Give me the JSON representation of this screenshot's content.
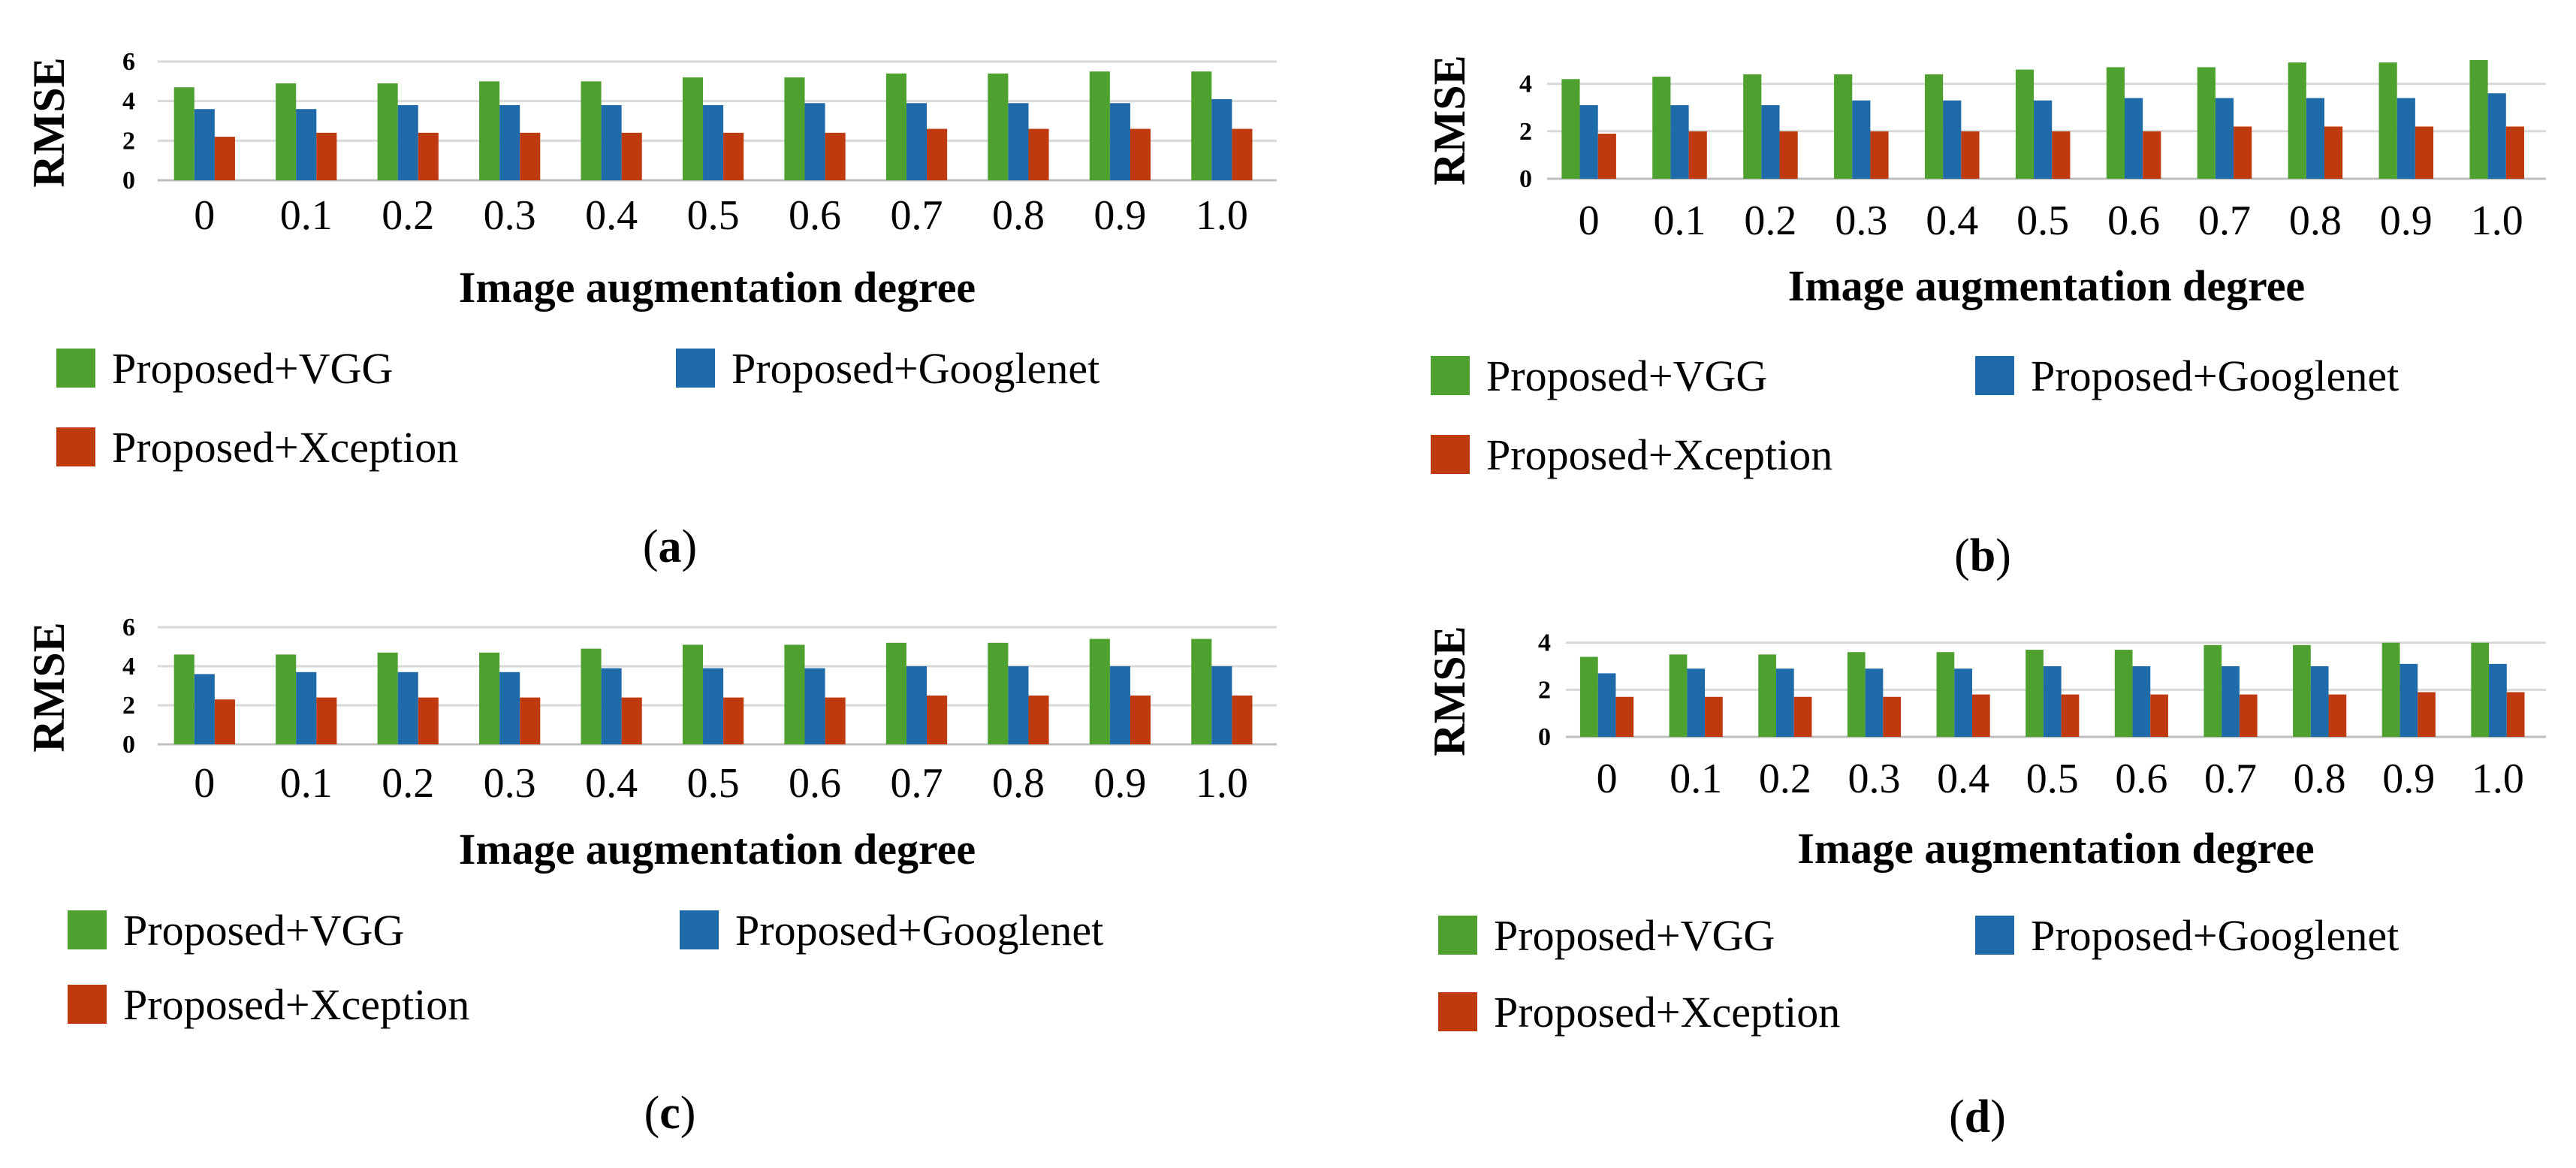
{
  "colors": {
    "vgg": "#4ea12f",
    "googlenet": "#1f6aa8",
    "xception": "#c03a10",
    "grid": "#d9d9d9",
    "axis": "#bfbfbf"
  },
  "chart_data": [
    {
      "type": "bar",
      "panel_label": "a",
      "ylabel": "RMSE",
      "xlabel": "Image augmentation degree",
      "categories": [
        "0",
        "0.1",
        "0.2",
        "0.3",
        "0.4",
        "0.5",
        "0.6",
        "0.7",
        "0.8",
        "0.9",
        "1.0"
      ],
      "ylim": [
        0,
        6
      ],
      "yticks": [
        "0",
        "2",
        "4",
        "6"
      ],
      "grid": true,
      "legend_position": "bottom",
      "series": [
        {
          "name": "Proposed+VGG",
          "color_key": "vgg",
          "values": [
            4.7,
            4.9,
            4.9,
            5.0,
            5.0,
            5.2,
            5.2,
            5.4,
            5.4,
            5.5,
            5.5
          ]
        },
        {
          "name": "Proposed+Googlenet",
          "color_key": "googlenet",
          "values": [
            3.6,
            3.6,
            3.8,
            3.8,
            3.8,
            3.8,
            3.9,
            3.9,
            3.9,
            3.9,
            4.1
          ]
        },
        {
          "name": "Proposed+Xception",
          "color_key": "xception",
          "values": [
            2.2,
            2.4,
            2.4,
            2.4,
            2.4,
            2.4,
            2.4,
            2.6,
            2.6,
            2.6,
            2.6
          ]
        }
      ]
    },
    {
      "type": "bar",
      "panel_label": "b",
      "ylabel": "RMSE",
      "xlabel": "Image augmentation degree",
      "categories": [
        "0",
        "0.1",
        "0.2",
        "0.3",
        "0.4",
        "0.5",
        "0.6",
        "0.7",
        "0.8",
        "0.9",
        "1.0"
      ],
      "ylim": [
        0,
        5
      ],
      "yticks": [
        "0",
        "2",
        "4"
      ],
      "grid": true,
      "legend_position": "bottom",
      "series": [
        {
          "name": "Proposed+VGG",
          "color_key": "vgg",
          "values": [
            4.2,
            4.3,
            4.4,
            4.4,
            4.4,
            4.6,
            4.7,
            4.7,
            4.9,
            4.9,
            5.0
          ]
        },
        {
          "name": "Proposed+Googlenet",
          "color_key": "googlenet",
          "values": [
            3.1,
            3.1,
            3.1,
            3.3,
            3.3,
            3.3,
            3.4,
            3.4,
            3.4,
            3.4,
            3.6
          ]
        },
        {
          "name": "Proposed+Xception",
          "color_key": "xception",
          "values": [
            1.9,
            2.0,
            2.0,
            2.0,
            2.0,
            2.0,
            2.0,
            2.2,
            2.2,
            2.2,
            2.2
          ]
        }
      ]
    },
    {
      "type": "bar",
      "panel_label": "c",
      "ylabel": "RMSE",
      "xlabel": "Image augmentation degree",
      "categories": [
        "0",
        "0.1",
        "0.2",
        "0.3",
        "0.4",
        "0.5",
        "0.6",
        "0.7",
        "0.8",
        "0.9",
        "1.0"
      ],
      "ylim": [
        0,
        6
      ],
      "yticks": [
        "0",
        "2",
        "4",
        "6"
      ],
      "grid": true,
      "legend_position": "bottom",
      "series": [
        {
          "name": "Proposed+VGG",
          "color_key": "vgg",
          "values": [
            4.6,
            4.6,
            4.7,
            4.7,
            4.9,
            5.1,
            5.1,
            5.2,
            5.2,
            5.4,
            5.4
          ]
        },
        {
          "name": "Proposed+Googlenet",
          "color_key": "googlenet",
          "values": [
            3.6,
            3.7,
            3.7,
            3.7,
            3.9,
            3.9,
            3.9,
            4.0,
            4.0,
            4.0,
            4.0
          ]
        },
        {
          "name": "Proposed+Xception",
          "color_key": "xception",
          "values": [
            2.3,
            2.4,
            2.4,
            2.4,
            2.4,
            2.4,
            2.4,
            2.5,
            2.5,
            2.5,
            2.5
          ]
        }
      ]
    },
    {
      "type": "bar",
      "panel_label": "d",
      "ylabel": "RMSE",
      "xlabel": "Image augmentation degree",
      "categories": [
        "0",
        "0.1",
        "0.2",
        "0.3",
        "0.4",
        "0.5",
        "0.6",
        "0.7",
        "0.8",
        "0.9",
        "1.0"
      ],
      "ylim": [
        0,
        4.5
      ],
      "yticks": [
        "0",
        "2",
        "4"
      ],
      "grid": true,
      "legend_position": "bottom",
      "series": [
        {
          "name": "Proposed+VGG",
          "color_key": "vgg",
          "values": [
            3.4,
            3.5,
            3.5,
            3.6,
            3.6,
            3.7,
            3.7,
            3.9,
            3.9,
            4.0,
            4.0
          ]
        },
        {
          "name": "Proposed+Googlenet",
          "color_key": "googlenet",
          "values": [
            2.7,
            2.9,
            2.9,
            2.9,
            2.9,
            3.0,
            3.0,
            3.0,
            3.0,
            3.1,
            3.1
          ]
        },
        {
          "name": "Proposed+Xception",
          "color_key": "xception",
          "values": [
            1.7,
            1.7,
            1.7,
            1.7,
            1.8,
            1.8,
            1.8,
            1.8,
            1.8,
            1.9,
            1.9
          ]
        }
      ]
    }
  ]
}
